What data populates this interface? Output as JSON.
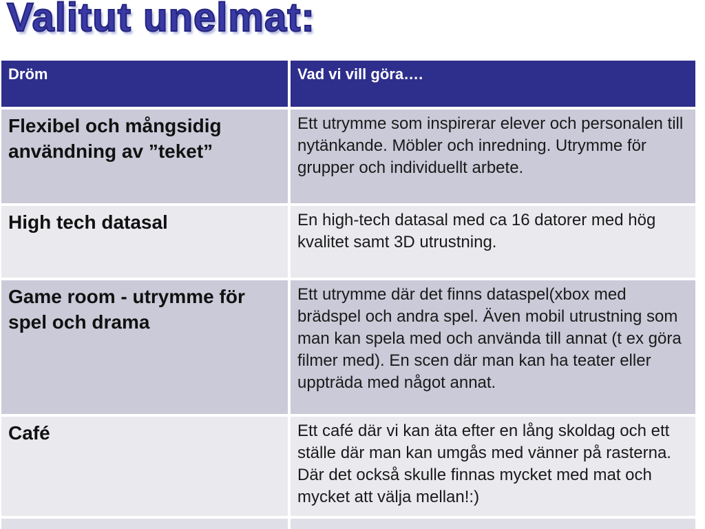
{
  "title": "Valitut unelmat:",
  "colors": {
    "header_bg": "#2E2E8D",
    "row_odd_bg": "#CACAD9",
    "row_even_bg": "#E9E9EE",
    "title_blue": "#3A3AA5",
    "header_text": "#FFFFFF",
    "body_text": "#111111"
  },
  "table": {
    "columns": [
      {
        "label": "Dröm"
      },
      {
        "label": "Vad vi vill göra…."
      }
    ],
    "rows": [
      {
        "dream": "Flexibel och mångsidig användning av ”teket”",
        "action": "Ett utrymme som inspirerar elever och personalen till nytänkande. Möbler och inredning. Utrymme för grupper och individuellt arbete."
      },
      {
        "dream": "High tech datasal",
        "action": "En high-tech datasal med ca 16 datorer med hög kvalitet samt 3D utrustning."
      },
      {
        "dream": "Game room - utrymme för spel och drama",
        "action": "Ett utrymme där det finns dataspel(xbox med brädspel och andra spel. Även mobil utrustning som man kan spela med och använda till annat (t ex göra filmer med). En scen där man kan ha teater eller uppträda med något annat."
      },
      {
        "dream": "Café",
        "action": "Ett café där vi kan äta efter en lång skoldag och ett ställe där man kan umgås med vänner på rasterna. Där det också skulle finnas mycket med mat och mycket att välja mellan!:)"
      }
    ]
  }
}
